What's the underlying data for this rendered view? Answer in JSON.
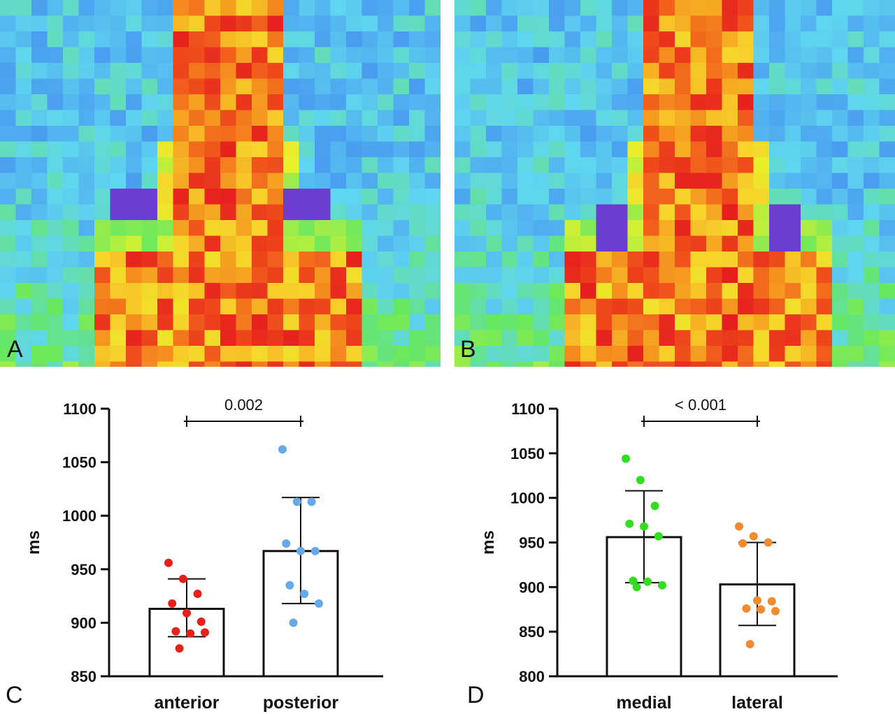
{
  "panels": {
    "A": {
      "letter": "A"
    },
    "B": {
      "letter": "B"
    },
    "C": {
      "letter": "C"
    },
    "D": {
      "letter": "D"
    }
  },
  "colors": {
    "map_background": "#4a7ee8",
    "map_light": "#5fd6ef",
    "map_mid": "#66e85f",
    "map_warm": "#f7d12a",
    "map_hot": "#ef4b1b",
    "map_peak": "#e61e1e",
    "map_probe": "#6a3fd0",
    "anterior_points": "#e8201c",
    "posterior_points": "#66a9e6",
    "medial_points": "#33dd22",
    "lateral_points": "#f28a30"
  },
  "chart_data": [
    {
      "type": "bar",
      "panel": "C",
      "categories": [
        "anterior",
        "posterior"
      ],
      "values": [
        913,
        967
      ],
      "error_bars": [
        [
          887,
          941
        ],
        [
          918,
          1017
        ]
      ],
      "points": [
        [
          956,
          941,
          927,
          918,
          909,
          901,
          892,
          890,
          891,
          876
        ],
        [
          1062,
          1013,
          1013,
          974,
          967,
          967,
          935,
          927,
          918,
          900
        ]
      ],
      "point_colors": [
        "#e8201c",
        "#66a9e6"
      ],
      "ylabel": "ms",
      "ylim": [
        850,
        1100
      ],
      "yticks": [
        850,
        900,
        950,
        1000,
        1050,
        1100
      ],
      "significance": "0.002"
    },
    {
      "type": "bar",
      "panel": "D",
      "categories": [
        "medial",
        "lateral"
      ],
      "values": [
        956,
        903
      ],
      "error_bars": [
        [
          905,
          1008
        ],
        [
          857,
          950
        ]
      ],
      "points": [
        [
          1044,
          1020,
          991,
          971,
          968,
          957,
          907,
          906,
          902,
          900
        ],
        [
          968,
          957,
          950,
          949,
          885,
          884,
          876,
          875,
          873,
          836
        ]
      ],
      "point_colors": [
        "#33dd22",
        "#f28a30"
      ],
      "ylabel": "ms",
      "ylim": [
        800,
        1100
      ],
      "yticks": [
        800,
        850,
        900,
        950,
        1000,
        1050,
        1100
      ],
      "significance": "< 0.001"
    }
  ]
}
